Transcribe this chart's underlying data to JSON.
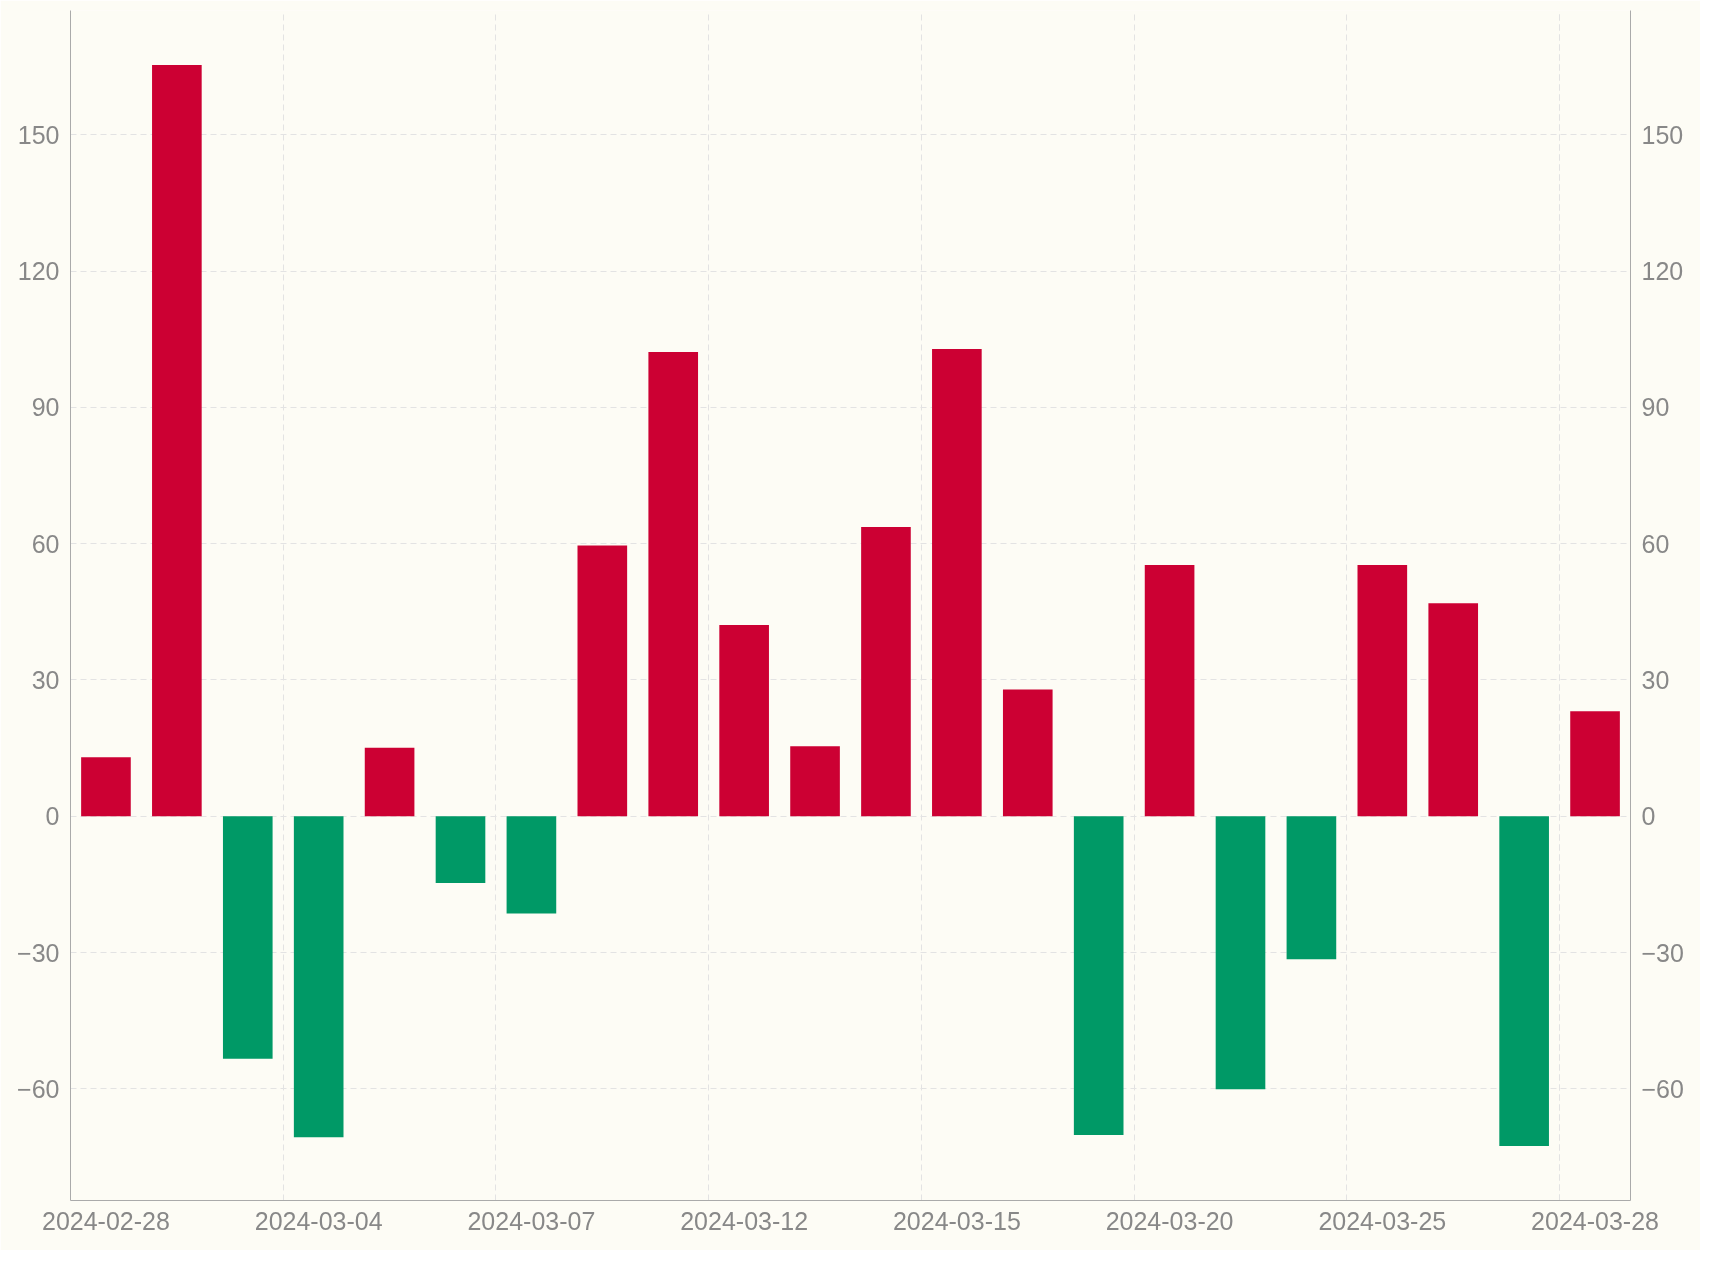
{
  "chart_data": {
    "type": "bar",
    "categories": [
      "2024-02-28",
      null,
      null,
      "2024-03-04",
      null,
      null,
      "2024-03-07",
      null,
      null,
      "2024-03-12",
      null,
      null,
      "2024-03-15",
      null,
      null,
      "2024-03-20",
      null,
      null,
      "2024-03-25",
      null,
      null,
      "2024-03-28"
    ],
    "values": [
      13.0,
      165.4,
      -53.4,
      -70.7,
      15.1,
      -14.7,
      -21.4,
      59.6,
      102.2,
      42.1,
      15.4,
      63.7,
      102.9,
      27.9,
      -70.2,
      55.3,
      -60.1,
      -31.5,
      55.3,
      46.9,
      -72.6,
      23.1
    ],
    "colors": [
      "#cc0033",
      "#cc0033",
      "#009966",
      "#009966",
      "#cc0033",
      "#009966",
      "#009966",
      "#cc0033",
      "#cc0033",
      "#cc0033",
      "#cc0033",
      "#cc0033",
      "#cc0033",
      "#cc0033",
      "#009966",
      "#cc0033",
      "#009966",
      "#009966",
      "#cc0033",
      "#cc0033",
      "#009966",
      "#cc0033"
    ],
    "ylim": [
      -84.6,
      177.4
    ],
    "yticks": [
      -60,
      -30,
      0,
      30,
      60,
      90,
      120,
      150
    ],
    "y2lim": [
      -84.6,
      177.4
    ],
    "y2ticks": [
      -60,
      -30,
      0,
      30,
      60,
      90,
      120,
      150
    ],
    "grid": true
  }
}
